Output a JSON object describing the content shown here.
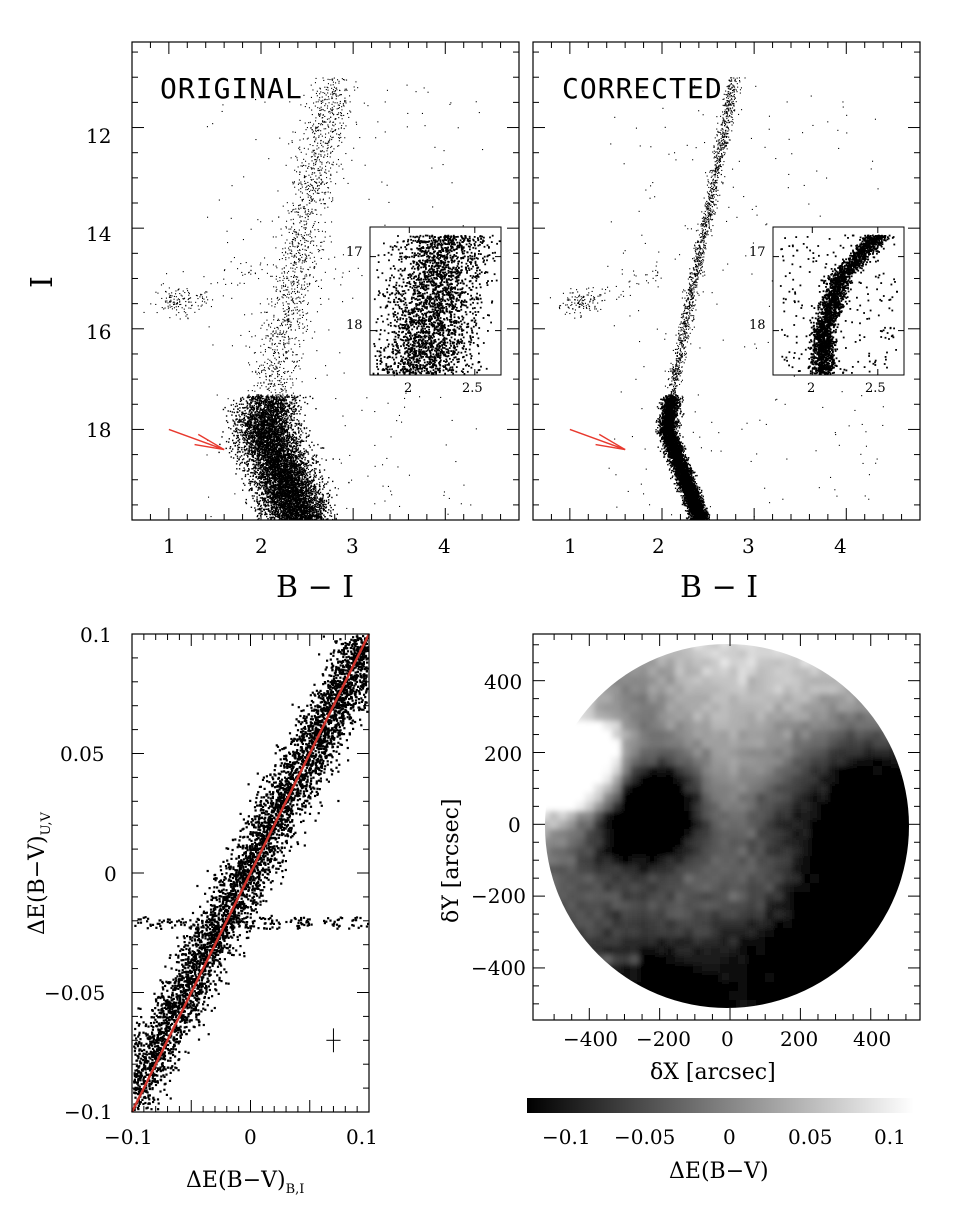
{
  "chart_data": [
    {
      "type": "scatter",
      "panel_label": "ORIGINAL",
      "xlabel": "B − I",
      "ylabel": "I",
      "xlim": [
        0.6,
        4.8
      ],
      "ylim": [
        19.8,
        10.3
      ],
      "x_ticks": [
        "1",
        "2",
        "3",
        "4"
      ],
      "y_ticks": [
        "12",
        "14",
        "16",
        "18"
      ],
      "arrow": {
        "color": "#e8392e",
        "from": [
          1.0,
          18.0
        ],
        "to": [
          1.6,
          18.4
        ]
      },
      "inset": {
        "xlim": [
          1.7,
          2.7
        ],
        "ylim": [
          18.6,
          16.6
        ],
        "x_ticks": [
          "2",
          "2.5"
        ],
        "y_ticks": [
          "17",
          "18"
        ]
      }
    },
    {
      "type": "scatter",
      "panel_label": "CORRECTED",
      "xlabel": "B − I",
      "xlim": [
        0.6,
        4.8
      ],
      "ylim": [
        19.8,
        10.3
      ],
      "x_ticks": [
        "1",
        "2",
        "3",
        "4"
      ],
      "arrow": {
        "color": "#e8392e",
        "from": [
          1.0,
          18.0
        ],
        "to": [
          1.6,
          18.4
        ]
      },
      "inset": {
        "xlim": [
          1.7,
          2.7
        ],
        "ylim": [
          18.6,
          16.6
        ],
        "x_ticks": [
          "2",
          "2.5"
        ],
        "y_ticks": [
          "17",
          "18"
        ]
      }
    },
    {
      "type": "scatter",
      "xlabel_main": "ΔE(B−V)",
      "xlabel_sub": "B,I",
      "ylabel_main": "ΔE(B−V)",
      "ylabel_sub": "U,V",
      "xlim": [
        -0.1,
        0.1
      ],
      "ylim": [
        -0.1,
        0.1
      ],
      "x_ticks": [
        "−0.1",
        "0",
        "0.1"
      ],
      "y_ticks": [
        "−0.1",
        "−0.05",
        "0",
        "0.05",
        "0.1"
      ],
      "reference_line": {
        "color": "#d0342c",
        "from": [
          -0.1,
          -0.1
        ],
        "to": [
          0.1,
          0.1
        ]
      },
      "error_bar": {
        "x": 0.07,
        "y": -0.07,
        "dx": 0.006,
        "dy": 0.005
      }
    },
    {
      "type": "heatmap",
      "xlabel": "δX [arcsec]",
      "ylabel": "δY [arcsec]",
      "xlim": [
        -560,
        540
      ],
      "ylim": [
        -545,
        530
      ],
      "x_ticks": [
        "−400",
        "−200",
        "0",
        "200",
        "400"
      ],
      "y_ticks": [
        "−400",
        "−200",
        "0",
        "200",
        "400"
      ],
      "colorbar": {
        "label": "ΔE(B−V)",
        "range": [
          -0.135,
          0.125
        ],
        "ticks": [
          "−0.1",
          "−0.05",
          "0",
          "0.05",
          "0.1"
        ],
        "colormap": "black-to-white"
      }
    }
  ]
}
